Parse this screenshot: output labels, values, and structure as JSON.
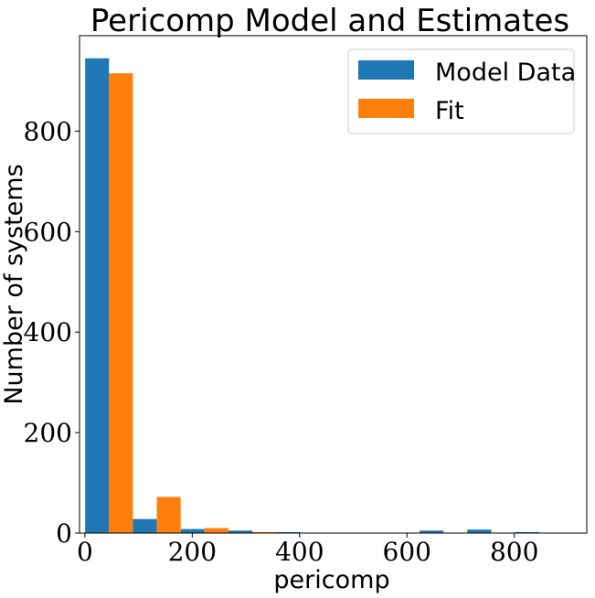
{
  "chart_data": {
    "type": "bar",
    "title": "Pericomp Model and Estimates",
    "xlabel": "pericomp",
    "ylabel": "Number of systems",
    "xlim": [
      -10,
      935
    ],
    "ylim": [
      0,
      990
    ],
    "xticks": [
      0,
      200,
      400,
      600,
      800
    ],
    "yticks": [
      0,
      200,
      400,
      600,
      800
    ],
    "bin_centers": [
      45,
      134,
      223,
      312,
      401,
      490,
      579,
      668,
      757,
      846
    ],
    "bin_width": 89,
    "series": [
      {
        "name": "Model Data",
        "color": "#1f77b4",
        "values": [
          945,
          28,
          8,
          5,
          2,
          0,
          0,
          5,
          7,
          2
        ]
      },
      {
        "name": "Fit",
        "color": "#ff7f0e",
        "values": [
          915,
          72,
          10,
          2,
          0,
          0,
          0,
          0,
          0,
          0
        ]
      }
    ],
    "legend": "top-right",
    "grid": false
  }
}
